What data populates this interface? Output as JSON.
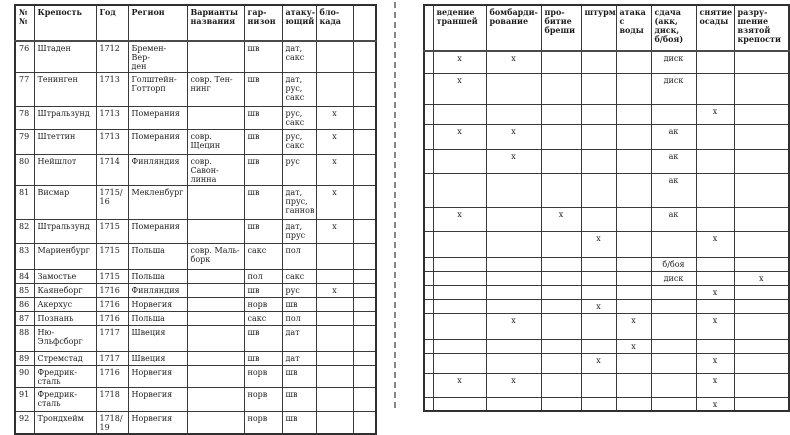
{
  "colors": {
    "background": "#ffffff",
    "border": "#3a3a3a",
    "text": "#1c1c1c",
    "divider": "#878787"
  },
  "left_table": {
    "headers": [
      "№№",
      "Крепость",
      "Год",
      "Регион",
      "Варианты\nназвания",
      "гар-\nнизон",
      "атаку-\nющий",
      "бло-\nкада",
      ""
    ],
    "rows": [
      [
        "76",
        "Штаден",
        "1712",
        "Бремен-Вер-\nден",
        "",
        "шв",
        "дат,\nсакс",
        "",
        ""
      ],
      [
        "77",
        "Тенинген",
        "1713",
        "Голштейн-\nГотторп",
        "совр. Тен-\nнинг",
        "шв",
        "дат,\nрус,\nсакс",
        "",
        ""
      ],
      [
        "78",
        "Штральзунд",
        "1713",
        "Померания",
        "",
        "шв",
        "рус,\nсакс",
        "x",
        ""
      ],
      [
        "79",
        "Штеттин",
        "1713",
        "Померания",
        "совр. Щецин",
        "шв",
        "рус,\nсакс",
        "x",
        ""
      ],
      [
        "80",
        "Нейшлот",
        "1714",
        "Финляндия",
        "совр. Савон-\nлинна",
        "шв",
        "рус",
        "x",
        ""
      ],
      [
        "81",
        "Висмар",
        "1715/\n16",
        "Мекленбург",
        "",
        "шв",
        "дат,\nпрус,\nганнов",
        "x",
        ""
      ],
      [
        "82",
        "Штральзунд",
        "1715",
        "Померания",
        "",
        "шв",
        "дат,\nпрус",
        "x",
        ""
      ],
      [
        "83",
        "Мариенбург",
        "1715",
        "Польша",
        "совр. Маль-\nборк",
        "сакс",
        "пол",
        "",
        ""
      ],
      [
        "84",
        "Замостье",
        "1715",
        "Польша",
        "",
        "пол",
        "сакс",
        "",
        ""
      ],
      [
        "85",
        "Каянеборг",
        "1716",
        "Финляндия",
        "",
        "шв",
        "рус",
        "x",
        ""
      ],
      [
        "86",
        "Акерхус",
        "1716",
        "Норвегия",
        "",
        "норв",
        "шв",
        "",
        ""
      ],
      [
        "87",
        "Познань",
        "1716",
        "Польша",
        "",
        "сакс",
        "пол",
        "",
        ""
      ],
      [
        "88",
        "Ню-\nЭльфсборг",
        "1717",
        "Швеция",
        "",
        "шв",
        "дат",
        "",
        ""
      ],
      [
        "89",
        "Стремстад",
        "1717",
        "Швеция",
        "",
        "шв",
        "дат",
        "",
        ""
      ],
      [
        "90",
        "Фредрик-\nсталь",
        "1716",
        "Норвегия",
        "",
        "норв",
        "шв",
        "",
        ""
      ],
      [
        "91",
        "Фредрик-\nсталь",
        "1718",
        "Норвегия",
        "",
        "норв",
        "шв",
        "",
        ""
      ],
      [
        "92",
        "Трондхейм",
        "1718/\n19",
        "Норвегия",
        "",
        "норв",
        "шв",
        "",
        ""
      ]
    ]
  },
  "right_table": {
    "headers": [
      "",
      "ведение\nтраншей",
      "бомбарди-\nрование",
      "про-\nбитие\nбреши",
      "штурм",
      "атака\nс\nводы",
      "сдача\n(акк,\nдиск,\nб/боя)",
      "снятие\nосады",
      "разру-\nшение\nвзятой\nкрепости"
    ],
    "rows": [
      [
        "",
        "x",
        "x",
        "",
        "",
        "",
        "диск",
        "",
        ""
      ],
      [
        "",
        "x",
        "",
        "",
        "",
        "",
        "диск",
        "",
        ""
      ],
      [
        "",
        "",
        "",
        "",
        "",
        "",
        "",
        "x",
        ""
      ],
      [
        "",
        "x",
        "x",
        "",
        "",
        "",
        "ак",
        "",
        ""
      ],
      [
        "",
        "",
        "x",
        "",
        "",
        "",
        "ак",
        "",
        ""
      ],
      [
        "",
        "",
        "",
        "",
        "",
        "",
        "ак",
        "",
        ""
      ],
      [
        "",
        "x",
        "",
        "x",
        "",
        "",
        "ак",
        "",
        ""
      ],
      [
        "",
        "",
        "",
        "",
        "x",
        "",
        "",
        "x",
        ""
      ],
      [
        "",
        "",
        "",
        "",
        "",
        "",
        "б/боя",
        "",
        ""
      ],
      [
        "",
        "",
        "",
        "",
        "",
        "",
        "диск",
        "",
        "x"
      ],
      [
        "",
        "",
        "",
        "",
        "",
        "",
        "",
        "x",
        ""
      ],
      [
        "",
        "",
        "",
        "",
        "x",
        "",
        "",
        "",
        ""
      ],
      [
        "",
        "",
        "x",
        "",
        "",
        "x",
        "",
        "x",
        ""
      ],
      [
        "",
        "",
        "",
        "",
        "",
        "x",
        "",
        "",
        ""
      ],
      [
        "",
        "",
        "",
        "",
        "x",
        "",
        "",
        "x",
        ""
      ],
      [
        "",
        "x",
        "x",
        "",
        "",
        "",
        "",
        "x",
        ""
      ],
      [
        "",
        "",
        "",
        "",
        "",
        "",
        "",
        "x",
        ""
      ]
    ]
  }
}
